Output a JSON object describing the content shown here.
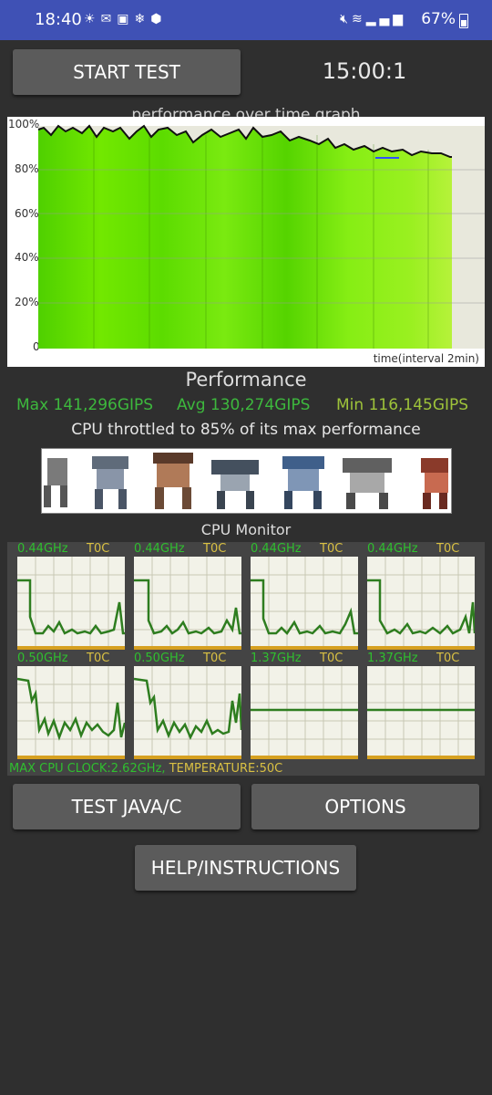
{
  "status_bar": {
    "time": "18:40",
    "left_icons": [
      "weather-icon",
      "mail-icon",
      "image-icon",
      "snowflake-icon",
      "app-badge-icon"
    ],
    "right_icons": [
      "mute-icon",
      "wifi-icon",
      "signal-icon"
    ],
    "battery": "67%"
  },
  "controls": {
    "start_test": "START TEST",
    "timer": "15:00:1",
    "test_java_c": "TEST JAVA/C",
    "options": "OPTIONS",
    "help": "HELP/INSTRUCTIONS"
  },
  "graph": {
    "title": "performance over time graph",
    "y_labels": [
      "100%",
      "80%",
      "60%",
      "40%",
      "20%",
      "0"
    ],
    "x_note": "time(interval 2min)"
  },
  "performance": {
    "title": "Performance",
    "max": "Max 141,296GIPS",
    "avg": "Avg 130,274GIPS",
    "min": "Min 116,145GIPS",
    "throttle_text": "CPU throttled to 85% of its max performance"
  },
  "cpu_monitor": {
    "title": "CPU Monitor",
    "cores": [
      {
        "freq": "0.44GHz",
        "temp": "T0C"
      },
      {
        "freq": "0.44GHz",
        "temp": "T0C"
      },
      {
        "freq": "0.44GHz",
        "temp": "T0C"
      },
      {
        "freq": "0.44GHz",
        "temp": "T0C"
      },
      {
        "freq": "0.50GHz",
        "temp": "T0C"
      },
      {
        "freq": "0.50GHz",
        "temp": "T0C"
      },
      {
        "freq": "1.37GHz",
        "temp": "T0C"
      },
      {
        "freq": "1.37GHz",
        "temp": "T0C"
      }
    ],
    "max_clock": "MAX CPU CLOCK:2.62GHz,",
    "temperature": "TEMPERATURE:50C"
  },
  "colors": {
    "status_bar": "#3f51b5",
    "background": "#2f2f2f",
    "button": "#5b5b5b",
    "graph_green": "#66e000",
    "max_avg": "#3db83d",
    "min": "#9ec33a",
    "cpu_line": "#2e7d1f",
    "temp_yellow": "#d9c043"
  }
}
